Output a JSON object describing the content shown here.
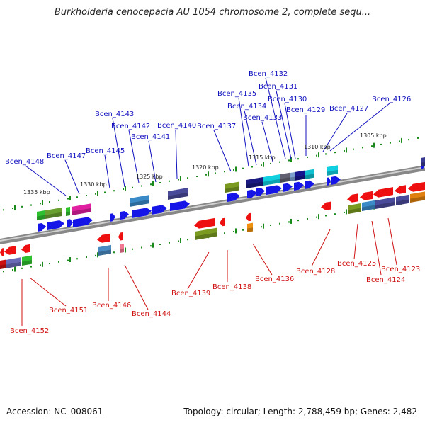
{
  "title": "Burkholderia cenocepacia AU 1054 chromosome 2, complete sequ...",
  "accession": "Accession: NC_008061",
  "summary": "Topology: circular; Length: 2,788,459 bp; Genes: 2,482",
  "colors": {
    "forward_label": "#1010c0",
    "reverse_label": "#d01010",
    "backbone": "#8a8a8a",
    "tick": "#1a8a1a"
  },
  "kbp_ticks": [
    "1305 kbp",
    "1310 kbp",
    "1315 kbp",
    "1320 kbp",
    "1325 kbp",
    "1330 kbp",
    "1335 kbp"
  ],
  "forward_genes": [
    "Bcen_4148",
    "Bcen_4147",
    "Bcen_4145",
    "Bcen_4143",
    "Bcen_4142",
    "Bcen_4141",
    "Bcen_4140",
    "Bcen_4137",
    "Bcen_4135",
    "Bcen_4134",
    "Bcen_4133",
    "Bcen_4132",
    "Bcen_4131",
    "Bcen_4130",
    "Bcen_4129",
    "Bcen_4127",
    "Bcen_4126"
  ],
  "reverse_genes": [
    "Bcen_4152",
    "Bcen_4151",
    "Bcen_4146",
    "Bcen_4144",
    "Bcen_4139",
    "Bcen_4138",
    "Bcen_4136",
    "Bcen_4128",
    "Bcen_4125",
    "Bcen_4124",
    "Bcen_4123"
  ]
}
